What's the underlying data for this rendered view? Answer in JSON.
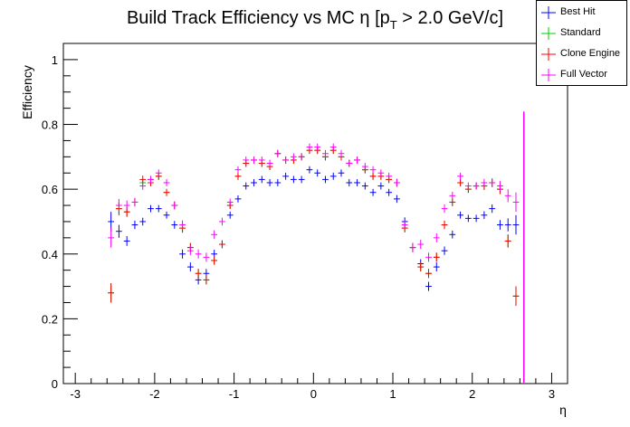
{
  "chart_data": {
    "type": "scatter",
    "title": "Build Track Efficiency vs MC η [p_T > 2.0 GeV/c]",
    "title_parts": {
      "pre": "Build Track Efficiency vs MC η [p",
      "sub": "T",
      "post": " > 2.0 GeV/c]"
    },
    "xlabel": "η",
    "ylabel": "Efficiency",
    "xlim": [
      -3.15,
      3.2
    ],
    "ylim": [
      0,
      1.05
    ],
    "x_ticks": [
      -3,
      -2,
      -1,
      0,
      1,
      2,
      3
    ],
    "x_tick_labels": [
      "-3",
      "-2",
      "-1",
      "0",
      "1",
      "2",
      "3"
    ],
    "y_ticks": [
      0,
      0.2,
      0.4,
      0.6,
      0.8,
      1
    ],
    "y_tick_labels": [
      "0",
      "0.2",
      "0.4",
      "0.6",
      "0.8",
      "1"
    ],
    "grid": false,
    "legend_position": "top-right",
    "x": [
      -2.55,
      -2.45,
      -2.35,
      -2.25,
      -2.15,
      -2.05,
      -1.95,
      -1.85,
      -1.75,
      -1.65,
      -1.55,
      -1.45,
      -1.35,
      -1.25,
      -1.15,
      -1.05,
      -0.95,
      -0.85,
      -0.75,
      -0.65,
      -0.55,
      -0.45,
      -0.35,
      -0.25,
      -0.15,
      -0.05,
      0.05,
      0.15,
      0.25,
      0.35,
      0.45,
      0.55,
      0.65,
      0.75,
      0.85,
      0.95,
      1.05,
      1.15,
      1.25,
      1.35,
      1.45,
      1.55,
      1.65,
      1.75,
      1.85,
      1.95,
      2.05,
      2.15,
      2.25,
      2.35,
      2.45,
      2.55
    ],
    "series": [
      {
        "name": "Best Hit",
        "color": "#0000ff",
        "values": [
          0.5,
          0.47,
          0.44,
          0.49,
          0.5,
          0.54,
          0.54,
          0.52,
          0.49,
          0.4,
          0.36,
          0.32,
          0.34,
          0.4,
          0.43,
          0.52,
          0.57,
          0.61,
          0.62,
          0.63,
          0.62,
          0.62,
          0.64,
          0.63,
          0.63,
          0.66,
          0.65,
          0.63,
          0.64,
          0.65,
          0.62,
          0.62,
          0.61,
          0.59,
          0.61,
          0.59,
          0.57,
          0.5,
          0.42,
          0.37,
          0.3,
          0.36,
          0.41,
          0.46,
          0.52,
          0.51,
          0.51,
          0.52,
          0.54,
          0.49,
          0.49,
          0.49
        ],
        "errors": [
          0.03,
          0.02,
          0.015,
          0.013,
          0.012,
          0.011,
          0.011,
          0.011,
          0.012,
          0.014,
          0.014,
          0.014,
          0.014,
          0.013,
          0.012,
          0.011,
          0.011,
          0.011,
          0.011,
          0.011,
          0.011,
          0.011,
          0.011,
          0.011,
          0.011,
          0.011,
          0.011,
          0.011,
          0.011,
          0.011,
          0.011,
          0.011,
          0.011,
          0.011,
          0.011,
          0.011,
          0.012,
          0.013,
          0.014,
          0.014,
          0.014,
          0.014,
          0.013,
          0.012,
          0.011,
          0.011,
          0.011,
          0.012,
          0.013,
          0.015,
          0.02,
          0.03
        ]
      },
      {
        "name": "Standard",
        "color": "#00cc00",
        "values": [
          0.28,
          0.54,
          0.53,
          0.56,
          0.62,
          0.63,
          0.64,
          0.59,
          0.55,
          0.48,
          0.42,
          0.34,
          0.32,
          0.38,
          0.43,
          0.55,
          0.64,
          0.68,
          0.69,
          0.68,
          0.67,
          0.71,
          0.69,
          0.69,
          0.7,
          0.72,
          0.72,
          0.7,
          0.72,
          0.7,
          0.68,
          0.69,
          0.66,
          0.64,
          0.64,
          0.63,
          0.62,
          0.48,
          0.42,
          0.36,
          0.34,
          0.39,
          0.49,
          0.56,
          0.62,
          0.6,
          0.61,
          0.61,
          0.62,
          0.6,
          0.44,
          0.27
        ],
        "errors": [
          0.03,
          0.02,
          0.015,
          0.013,
          0.012,
          0.011,
          0.011,
          0.011,
          0.012,
          0.014,
          0.014,
          0.014,
          0.014,
          0.013,
          0.012,
          0.011,
          0.011,
          0.011,
          0.011,
          0.011,
          0.011,
          0.011,
          0.011,
          0.011,
          0.011,
          0.011,
          0.011,
          0.011,
          0.011,
          0.011,
          0.011,
          0.011,
          0.011,
          0.011,
          0.011,
          0.011,
          0.012,
          0.013,
          0.014,
          0.014,
          0.014,
          0.014,
          0.013,
          0.012,
          0.011,
          0.011,
          0.011,
          0.012,
          0.013,
          0.015,
          0.02,
          0.03
        ]
      },
      {
        "name": "Clone Engine",
        "color": "#ff0000",
        "values": [
          0.28,
          0.54,
          0.53,
          0.56,
          0.63,
          0.62,
          0.64,
          0.59,
          0.55,
          0.48,
          0.42,
          0.34,
          0.32,
          0.38,
          0.43,
          0.55,
          0.64,
          0.68,
          0.69,
          0.68,
          0.67,
          0.71,
          0.69,
          0.69,
          0.7,
          0.72,
          0.72,
          0.7,
          0.72,
          0.7,
          0.68,
          0.69,
          0.66,
          0.64,
          0.64,
          0.63,
          0.62,
          0.48,
          0.42,
          0.36,
          0.34,
          0.39,
          0.49,
          0.56,
          0.62,
          0.6,
          0.61,
          0.61,
          0.62,
          0.6,
          0.44,
          0.27
        ],
        "errors": [
          0.03,
          0.02,
          0.015,
          0.013,
          0.012,
          0.011,
          0.011,
          0.011,
          0.012,
          0.014,
          0.014,
          0.014,
          0.014,
          0.013,
          0.012,
          0.011,
          0.011,
          0.011,
          0.011,
          0.011,
          0.011,
          0.011,
          0.011,
          0.011,
          0.011,
          0.011,
          0.011,
          0.011,
          0.011,
          0.011,
          0.011,
          0.011,
          0.011,
          0.011,
          0.011,
          0.011,
          0.012,
          0.013,
          0.014,
          0.014,
          0.014,
          0.014,
          0.013,
          0.012,
          0.011,
          0.011,
          0.011,
          0.012,
          0.013,
          0.015,
          0.02,
          0.03
        ]
      },
      {
        "name": "Full Vector",
        "color": "#ff00ff",
        "values": [
          0.45,
          0.55,
          0.55,
          0.56,
          0.61,
          0.63,
          0.65,
          0.62,
          0.55,
          0.49,
          0.41,
          0.4,
          0.39,
          0.46,
          0.5,
          0.56,
          0.66,
          0.69,
          0.69,
          0.69,
          0.68,
          0.71,
          0.69,
          0.7,
          0.7,
          0.73,
          0.73,
          0.71,
          0.73,
          0.71,
          0.68,
          0.69,
          0.67,
          0.66,
          0.65,
          0.64,
          0.62,
          0.49,
          0.42,
          0.43,
          0.39,
          0.45,
          0.54,
          0.58,
          0.64,
          0.61,
          0.61,
          0.62,
          0.62,
          0.61,
          0.58,
          0.56
        ],
        "errors": [
          0.03,
          0.02,
          0.015,
          0.013,
          0.012,
          0.011,
          0.011,
          0.011,
          0.012,
          0.014,
          0.014,
          0.014,
          0.014,
          0.013,
          0.012,
          0.011,
          0.011,
          0.011,
          0.011,
          0.011,
          0.011,
          0.011,
          0.011,
          0.011,
          0.011,
          0.011,
          0.011,
          0.011,
          0.011,
          0.011,
          0.011,
          0.011,
          0.011,
          0.011,
          0.011,
          0.011,
          0.012,
          0.013,
          0.014,
          0.014,
          0.014,
          0.014,
          0.013,
          0.012,
          0.011,
          0.011,
          0.011,
          0.012,
          0.013,
          0.015,
          0.02,
          0.03
        ]
      }
    ],
    "extra_points": [
      {
        "series": "Full Vector",
        "x": 2.65,
        "value": 0.0,
        "error_low": 0.0,
        "error_high": 0.84
      }
    ]
  }
}
